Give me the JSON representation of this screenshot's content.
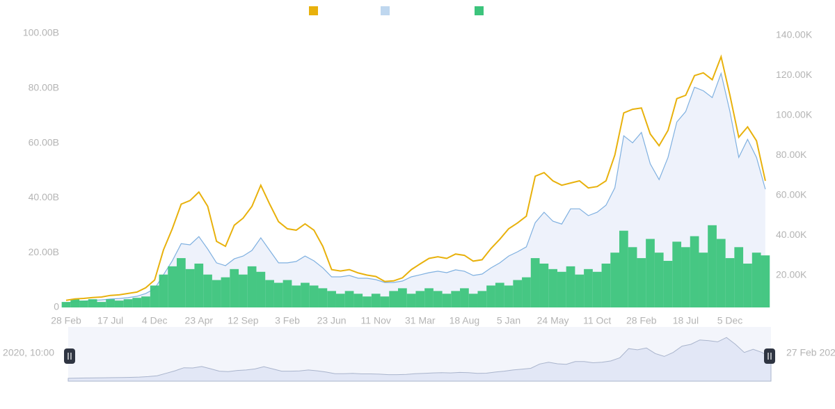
{
  "chart_data": {
    "type": "line",
    "categories": [
      "28 Feb",
      null,
      null,
      null,
      null,
      "17 Jul",
      null,
      null,
      null,
      null,
      "4 Dec",
      null,
      null,
      null,
      null,
      "23 Apr",
      null,
      null,
      null,
      null,
      "12 Sep",
      null,
      null,
      null,
      null,
      "3 Feb",
      null,
      null,
      null,
      null,
      "23 Jun",
      null,
      null,
      null,
      null,
      "11 Nov",
      null,
      null,
      null,
      null,
      "31 Mar",
      null,
      null,
      null,
      null,
      "18 Aug",
      null,
      null,
      null,
      null,
      "5 Jan",
      null,
      null,
      null,
      null,
      "24 May",
      null,
      null,
      null,
      null,
      "11 Oct",
      null,
      null,
      null,
      null,
      "28 Feb",
      null,
      null,
      null,
      null,
      "18 Jul",
      null,
      null,
      null,
      null,
      "5 Dec",
      null,
      null,
      null,
      null
    ],
    "series": [
      {
        "color": "#e8b10c",
        "values": [
          2.6,
          3.1,
          3.3,
          3.6,
          3.8,
          4.4,
          4.6,
          5.1,
          5.6,
          7.2,
          10.0,
          21.0,
          28.7,
          37.7,
          39.0,
          42.1,
          36.9,
          24.1,
          22.3,
          30.0,
          32.6,
          36.9,
          44.6,
          37.7,
          31.3,
          28.7,
          28.2,
          30.5,
          28.2,
          22.3,
          13.8,
          13.3,
          13.8,
          12.6,
          11.8,
          11.3,
          9.5,
          9.7,
          10.8,
          13.8,
          15.9,
          17.9,
          18.5,
          17.9,
          19.5,
          19.0,
          16.9,
          17.4,
          21.5,
          24.9,
          28.7,
          30.8,
          33.3,
          47.9,
          49.2,
          46.2,
          44.6,
          45.4,
          46.2,
          43.6,
          44.1,
          46.2,
          55.6,
          71.0,
          72.3,
          72.8,
          63.3,
          59.0,
          64.6,
          76.2,
          77.4,
          84.6,
          85.6,
          83.1,
          91.5,
          77.4,
          62.1,
          65.9,
          60.8,
          46.2
        ]
      },
      {
        "color": "#7fb0e0",
        "axis": "y2",
        "values": [
          6.1,
          6.8,
          7.2,
          7.5,
          7.8,
          8.2,
          8.5,
          8.9,
          9.6,
          11.0,
          13.4,
          20.3,
          27.3,
          35.9,
          35.3,
          39.4,
          33.2,
          26.3,
          24.9,
          28.3,
          29.7,
          32.5,
          38.8,
          32.5,
          26.3,
          26.3,
          27.0,
          29.7,
          27.3,
          23.8,
          19.3,
          19.3,
          20.0,
          18.6,
          18.6,
          17.9,
          16.5,
          16.5,
          17.2,
          19.3,
          20.3,
          21.4,
          22.1,
          21.4,
          22.8,
          22.1,
          20.0,
          20.7,
          23.8,
          26.3,
          29.7,
          31.8,
          34.3,
          46.4,
          51.6,
          47.1,
          45.7,
          53.3,
          53.3,
          49.9,
          51.6,
          55.1,
          63.8,
          89.8,
          86.3,
          91.5,
          75.8,
          67.9,
          79.0,
          96.7,
          101.9,
          114.1,
          112.3,
          108.9,
          121.0,
          101.9,
          79.0,
          88.0,
          79.0,
          63.1
        ]
      },
      {
        "color": "#3cc47c",
        "type": "bar",
        "values": [
          2,
          3,
          2.5,
          3,
          2,
          3,
          2.5,
          3,
          3.5,
          4,
          8,
          12,
          15,
          18,
          14,
          16,
          12,
          10,
          11,
          14,
          12,
          15,
          13,
          10,
          9,
          10,
          8,
          9,
          8,
          7,
          6,
          5,
          6,
          5,
          4,
          5,
          4,
          6,
          7,
          5,
          6,
          7,
          6,
          5,
          6,
          7,
          5,
          6,
          8,
          9,
          8,
          10,
          11,
          18,
          16,
          14,
          13,
          15,
          12,
          14,
          13,
          16,
          20,
          28,
          22,
          18,
          25,
          20,
          17,
          24,
          22,
          26,
          20,
          30,
          25,
          18,
          22,
          16,
          20,
          19
        ]
      }
    ],
    "ylim": [
      0,
      100
    ],
    "yticks": [
      0,
      {
        "value": 20,
        "label": "20.00B"
      },
      {
        "value": 40,
        "label": "40.00B"
      },
      {
        "value": 60,
        "label": "60.00B"
      },
      {
        "value": 80,
        "label": "80.00B"
      },
      {
        "value": 100,
        "label": "100.00B"
      }
    ],
    "y2lim": [
      4,
      141
    ],
    "y2ticks": [
      {
        "value": 20,
        "label": "20.00K"
      },
      {
        "value": 40,
        "label": "40.00K"
      },
      {
        "value": 60,
        "label": "60.00K"
      },
      {
        "value": 80,
        "label": "80.00K"
      },
      {
        "value": 100,
        "label": "100.00K"
      },
      {
        "value": 120,
        "label": "120.00K"
      },
      {
        "value": 140,
        "label": "140.00K"
      }
    ],
    "range_start_label": "2020, 10:00",
    "range_end_label": "27 Feb 202"
  }
}
